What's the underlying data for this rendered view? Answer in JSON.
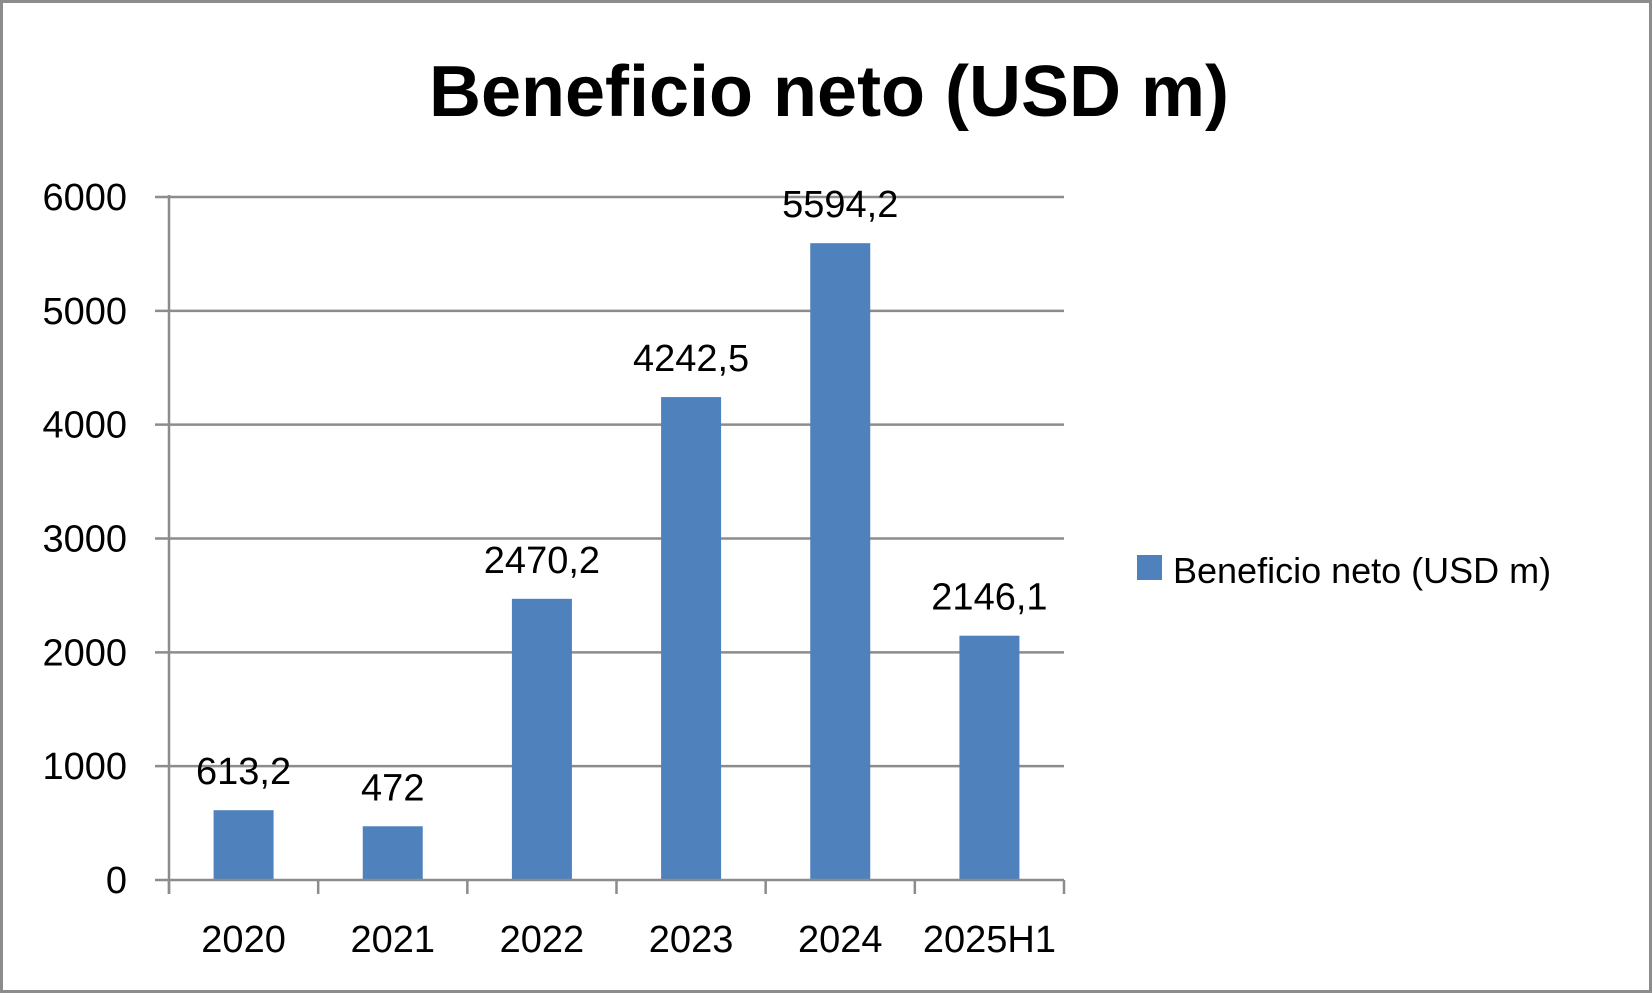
{
  "chart_data": {
    "type": "bar",
    "title": "Beneficio neto (USD m)",
    "categories": [
      "2020",
      "2021",
      "2022",
      "2023",
      "2024",
      "2025H1"
    ],
    "series": [
      {
        "name": "Beneficio neto (USD m)",
        "values": [
          613.2,
          472,
          2470.2,
          4242.5,
          5594.2,
          2146.1
        ],
        "labels": [
          "613,2",
          "472",
          "2470,2",
          "4242,5",
          "5594,2",
          "2146,1"
        ],
        "color": "#4F81BD"
      }
    ],
    "xlabel": "",
    "ylabel": "",
    "ylim": [
      0,
      6000
    ],
    "yticks": [
      "0",
      "1000",
      "2000",
      "3000",
      "4000",
      "5000",
      "6000"
    ],
    "grid": true,
    "legend": "right"
  },
  "colors": {
    "gridline": "#8c8c8c",
    "axis": "#8c8c8c",
    "border": "#8c8c8c"
  }
}
